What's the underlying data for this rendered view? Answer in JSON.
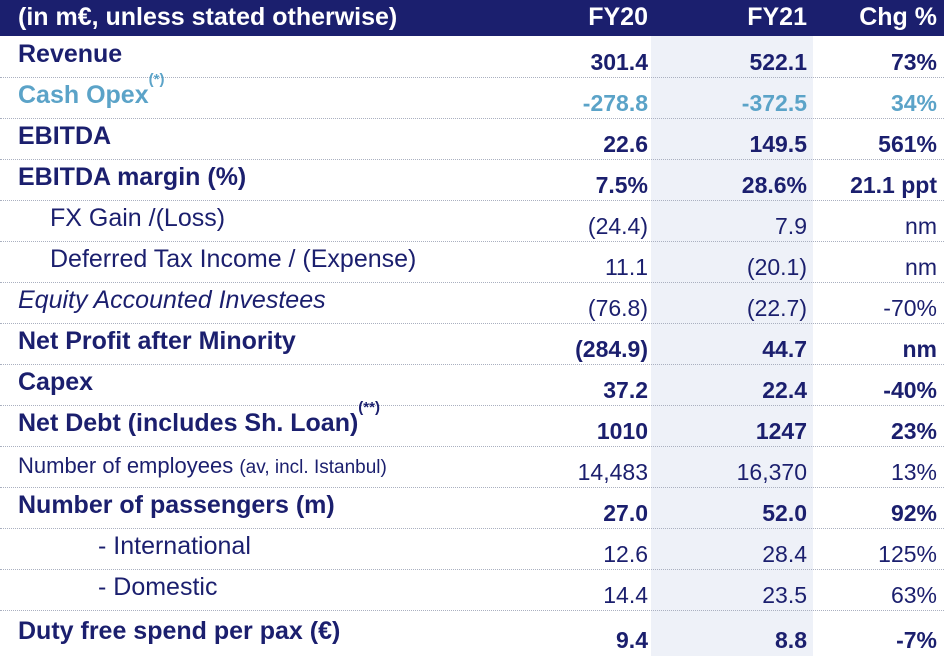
{
  "header": {
    "label": "(in m€, unless stated otherwise)",
    "col1": "FY20",
    "col2": "FY21",
    "col3": "Chg %"
  },
  "rows": [
    {
      "label": "Revenue",
      "fy20": "301.4",
      "fy21": "522.1",
      "chg": "73%"
    },
    {
      "label": "Cash Opex",
      "note": "(*)",
      "fy20": "-278.8",
      "fy21": "-372.5",
      "chg": "34%"
    },
    {
      "label": "EBITDA",
      "fy20": "22.6",
      "fy21": "149.5",
      "chg": "561%"
    },
    {
      "label": "EBITDA margin (%)",
      "fy20": "7.5%",
      "fy21": "28.6%",
      "chg": "21.1 ppt"
    },
    {
      "label": "FX Gain /(Loss)",
      "fy20": "(24.4)",
      "fy21": "7.9",
      "chg": "nm"
    },
    {
      "label": "Deferred Tax Income / (Expense)",
      "fy20": "11.1",
      "fy21": "(20.1)",
      "chg": "nm"
    },
    {
      "label": "Equity Accounted Investees",
      "fy20": "(76.8)",
      "fy21": "(22.7)",
      "chg": "-70%"
    },
    {
      "label": "Net Profit after Minority",
      "fy20": "(284.9)",
      "fy21": "44.7",
      "chg": "nm"
    },
    {
      "label": "Capex",
      "fy20": "37.2",
      "fy21": "22.4",
      "chg": "-40%"
    },
    {
      "label": "Net Debt (includes Sh. Loan)",
      "note": "(**)",
      "fy20": "1010",
      "fy21": "1247",
      "chg": "23%"
    },
    {
      "label": "Number of employees",
      "label_suffix": "(av, incl. Istanbul)",
      "fy20": "14,483",
      "fy21": "16,370",
      "chg": "13%"
    },
    {
      "label": "Number of passengers (m)",
      "fy20": "27.0",
      "fy21": "52.0",
      "chg": "92%"
    },
    {
      "label": "- International",
      "fy20": "12.6",
      "fy21": "28.4",
      "chg": "125%"
    },
    {
      "label": "- Domestic",
      "fy20": "14.4",
      "fy21": "23.5",
      "chg": "63%"
    },
    {
      "label": "Duty free spend per pax (€)",
      "fy20": "9.4",
      "fy21": "8.8",
      "chg": "-7%"
    }
  ],
  "colors": {
    "header_bg": "#1b1f6e",
    "text": "#1b1f6e",
    "cash_opex": "#5ba3c8",
    "column_shade": "#eef1f8"
  }
}
